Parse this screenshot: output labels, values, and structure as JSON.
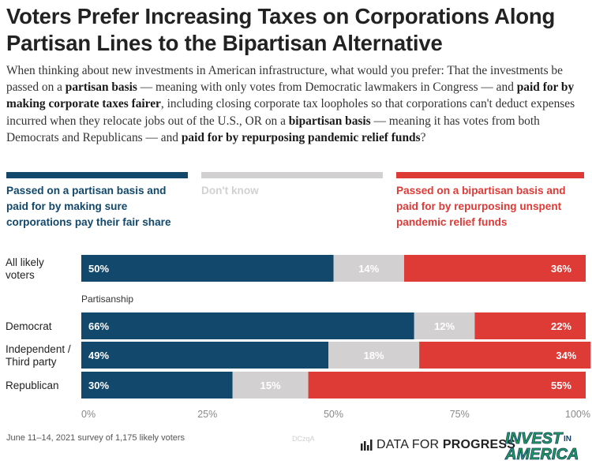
{
  "header": {
    "title": "Voters Prefer Increasing Taxes on Corporations Along Partisan Lines to the Bipartisan Alternative",
    "question": [
      {
        "t": "When thinking about new investments in American infrastructure, what would you prefer: That the investments be passed on a ",
        "b": false
      },
      {
        "t": "partisan basis",
        "b": true
      },
      {
        "t": " — meaning with only votes from Democratic lawmakers in Congress — and ",
        "b": false
      },
      {
        "t": "paid for by making corporate taxes fairer",
        "b": true
      },
      {
        "t": ", including closing corporate tax loopholes so that corporations can't deduct expenses incurred when they relocate jobs out of the U.S., OR on a ",
        "b": false
      },
      {
        "t": "bipartisan basis",
        "b": true
      },
      {
        "t": " — meaning it has votes from both Democrats and Republicans — and ",
        "b": false
      },
      {
        "t": "paid for by repurposing pandemic relief funds",
        "b": true
      },
      {
        "t": "?",
        "b": false
      }
    ]
  },
  "legend": [
    {
      "name": "Passed on a partisan basis and paid for by making sure corporations pay their fair share",
      "lines": [
        "Passed on a partisan basis and",
        "paid for by making sure",
        "corporations pay their fair share"
      ],
      "color": "#11486b",
      "text_color": "#11486b"
    },
    {
      "name": "Don't know",
      "lines": [
        "Don't know"
      ],
      "color": "#d3d0d2",
      "text_color": "#d3d0d2"
    },
    {
      "name": "Passed on a bipartisan basis and paid for by repurposing unspent pandemic relief funds",
      "lines": [
        "Passed on a bipartisan basis and",
        "paid for by repurposing unspent",
        "pandemic relief funds"
      ],
      "color": "#de3a36",
      "text_color": "#de3a36"
    }
  ],
  "chart_data": {
    "type": "bar",
    "orientation": "horizontal",
    "stacked": true,
    "categories": [
      "All likely voters",
      "Democrat",
      "Independent / Third party",
      "Republican"
    ],
    "category_label_lines": [
      [
        "All likely",
        "voters"
      ],
      [
        "Democrat"
      ],
      [
        "Independent /",
        "Third party"
      ],
      [
        "Republican"
      ]
    ],
    "group_label": "Partisanship",
    "series": [
      {
        "name": "Passed on a partisan basis and paid for by making sure corporations pay their fair share",
        "values": [
          50,
          66,
          49,
          30
        ],
        "labels": [
          "50%",
          "66%",
          "49%",
          "30%"
        ],
        "color": "#11486b"
      },
      {
        "name": "Don't know",
        "values": [
          14,
          12,
          18,
          15
        ],
        "labels": [
          "14%",
          "12%",
          "18%",
          "15%"
        ],
        "color": "#d3d0d2"
      },
      {
        "name": "Passed on a bipartisan basis and paid for by repurposing unspent pandemic relief funds",
        "values": [
          36,
          22,
          34,
          55
        ],
        "labels": [
          "36%",
          "22%",
          "34%",
          "55%"
        ],
        "color": "#de3a36"
      }
    ],
    "xlim": [
      0,
      100
    ],
    "xticks": [
      0,
      25,
      50,
      75,
      100
    ],
    "xtick_labels": [
      "0%",
      "25%",
      "50%",
      "75%",
      "100%"
    ],
    "grid": false,
    "legend_position": "top"
  },
  "footer": {
    "note": "June 11–14, 2021 survey of 1,175 likely voters",
    "watermark": "DCzqA",
    "logo_dfp_prefix": "DATA FOR ",
    "logo_dfp_strong": "PROGRESS",
    "logo_iia_line1": "INVEST",
    "logo_iia_in": "IN",
    "logo_iia_line2": "AMERICA",
    "icon_name": "bar-chart-icon",
    "colors": {
      "iia_green": "#1f9e57",
      "iia_blue": "#15416a"
    }
  }
}
